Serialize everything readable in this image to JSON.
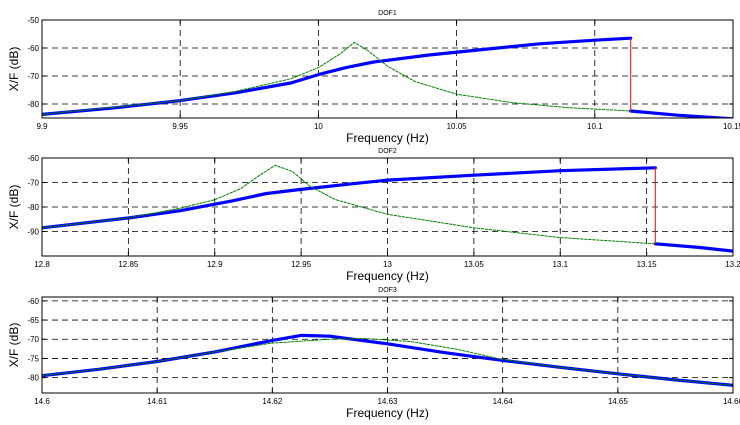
{
  "chart_data": [
    {
      "type": "line",
      "title": "DOF1",
      "xlabel": "Frequency  (Hz)",
      "ylabel": "X/F  (dB)",
      "xlim": [
        9.9,
        10.15
      ],
      "ylim": [
        -85,
        -50
      ],
      "xticks": [
        9.9,
        9.95,
        10,
        10.05,
        10.1,
        10.15
      ],
      "xtick_labels": [
        "9.9",
        "9.95",
        "10",
        "10.05",
        "10.1",
        "10.15"
      ],
      "yticks": [
        -80,
        -70,
        -60,
        -50
      ],
      "ytick_labels": [
        "-80",
        "-70",
        "-60",
        "-50"
      ],
      "grid": true,
      "jump": {
        "x": 10.113,
        "y_top": -56.5,
        "y_bottom": -82.5
      },
      "series": [
        {
          "style": "thick-solid",
          "color": "#0000ff",
          "x": [
            9.9,
            9.925,
            9.95,
            9.97,
            9.99,
            10.0,
            10.01,
            10.02,
            10.04,
            10.06,
            10.08,
            10.1,
            10.113
          ],
          "y": [
            -83.7,
            -81.5,
            -78.8,
            -76.0,
            -72.5,
            -69.5,
            -67.0,
            -65.0,
            -62.5,
            -60.5,
            -58.5,
            -57.2,
            -56.5
          ]
        },
        {
          "style": "thick-solid",
          "color": "#0000ff",
          "x": [
            10.113,
            10.13,
            10.15
          ],
          "y": [
            -82.5,
            -84.0,
            -85.3
          ]
        },
        {
          "style": "dashed",
          "color": "#008000",
          "x": [
            9.9,
            9.95,
            9.97,
            9.99,
            10.0,
            10.008,
            10.013,
            10.018,
            10.025,
            10.035,
            10.05,
            10.07,
            10.09,
            10.113
          ],
          "y": [
            -83.7,
            -78.8,
            -75.5,
            -71.0,
            -67.0,
            -62.0,
            -58.0,
            -61.0,
            -66.5,
            -72.0,
            -76.5,
            -79.5,
            -81.3,
            -82.5
          ]
        },
        {
          "style": "thin-solid",
          "color": "#ff0000",
          "x": [
            10.113,
            10.113
          ],
          "y": [
            -56.5,
            -82.5
          ]
        }
      ]
    },
    {
      "type": "line",
      "title": "DOF2",
      "xlabel": "Frequency  (Hz)",
      "ylabel": "X/F  (dB)",
      "xlim": [
        12.8,
        13.2
      ],
      "ylim": [
        -100,
        -60
      ],
      "xticks": [
        12.8,
        12.85,
        12.9,
        12.95,
        13.0,
        13.05,
        13.1,
        13.15,
        13.2
      ],
      "xtick_labels": [
        "12.8",
        "12.85",
        "12.9",
        "12.95",
        "13",
        "13.05",
        "13.1",
        "13.15",
        "13.2"
      ],
      "yticks": [
        -90,
        -80,
        -70,
        -60
      ],
      "ytick_labels": [
        "-90",
        "-80",
        "-70",
        "-60"
      ],
      "grid": true,
      "jump": {
        "x": 13.155,
        "y_top": -64,
        "y_bottom": -95
      },
      "series": [
        {
          "style": "thick-solid",
          "color": "#0000ff",
          "x": [
            12.8,
            12.85,
            12.88,
            12.91,
            12.93,
            12.95,
            12.98,
            13.0,
            13.05,
            13.1,
            13.155
          ],
          "y": [
            -88.5,
            -84.5,
            -81.5,
            -77.5,
            -74.5,
            -72.8,
            -70.5,
            -69.0,
            -67.0,
            -65.2,
            -64.0
          ]
        },
        {
          "style": "thick-solid",
          "color": "#0000ff",
          "x": [
            13.155,
            13.18,
            13.2
          ],
          "y": [
            -95.0,
            -96.5,
            -98.0
          ]
        },
        {
          "style": "dashed",
          "color": "#008000",
          "x": [
            12.8,
            12.85,
            12.88,
            12.9,
            12.915,
            12.925,
            12.935,
            12.945,
            12.955,
            12.97,
            13.0,
            13.05,
            13.1,
            13.155
          ],
          "y": [
            -88.5,
            -84.5,
            -80.5,
            -77.0,
            -72.5,
            -67.5,
            -63.0,
            -65.5,
            -71.5,
            -77.0,
            -83.0,
            -88.5,
            -92.5,
            -95.0
          ]
        },
        {
          "style": "thin-solid",
          "color": "#ff0000",
          "x": [
            13.155,
            13.155
          ],
          "y": [
            -64.0,
            -95.0
          ]
        }
      ]
    },
    {
      "type": "line",
      "title": "DOF3",
      "xlabel": "Frequency  (Hz)",
      "ylabel": "X/F  (dB)",
      "xlim": [
        14.6,
        14.66
      ],
      "ylim": [
        -84,
        -59
      ],
      "xticks": [
        14.6,
        14.61,
        14.62,
        14.63,
        14.64,
        14.65,
        14.66
      ],
      "xtick_labels": [
        "14.6",
        "14.61",
        "14.62",
        "14.63",
        "14.64",
        "14.65",
        "14.66"
      ],
      "yticks": [
        -80,
        -75,
        -70,
        -65,
        -60
      ],
      "ytick_labels": [
        "-80",
        "-75",
        "-70",
        "-65",
        "-60"
      ],
      "grid": true,
      "series": [
        {
          "style": "thick-solid",
          "color": "#0000ff",
          "x": [
            14.6,
            14.605,
            14.61,
            14.615,
            14.62,
            14.6225,
            14.625,
            14.63,
            14.635,
            14.64,
            14.645,
            14.65,
            14.655,
            14.66
          ],
          "y": [
            -79.5,
            -77.8,
            -75.8,
            -73.3,
            -70.3,
            -69.0,
            -69.2,
            -71.2,
            -73.5,
            -75.5,
            -77.3,
            -79.0,
            -80.6,
            -82.0
          ]
        },
        {
          "style": "dashed",
          "color": "#008000",
          "x": [
            14.6,
            14.605,
            14.61,
            14.615,
            14.62,
            14.625,
            14.628,
            14.632,
            14.636,
            14.64,
            14.645,
            14.65,
            14.655,
            14.66
          ],
          "y": [
            -79.5,
            -77.8,
            -75.8,
            -73.3,
            -71.0,
            -70.0,
            -69.8,
            -70.6,
            -72.6,
            -75.3,
            -77.3,
            -79.0,
            -80.6,
            -82.0
          ]
        }
      ]
    }
  ]
}
